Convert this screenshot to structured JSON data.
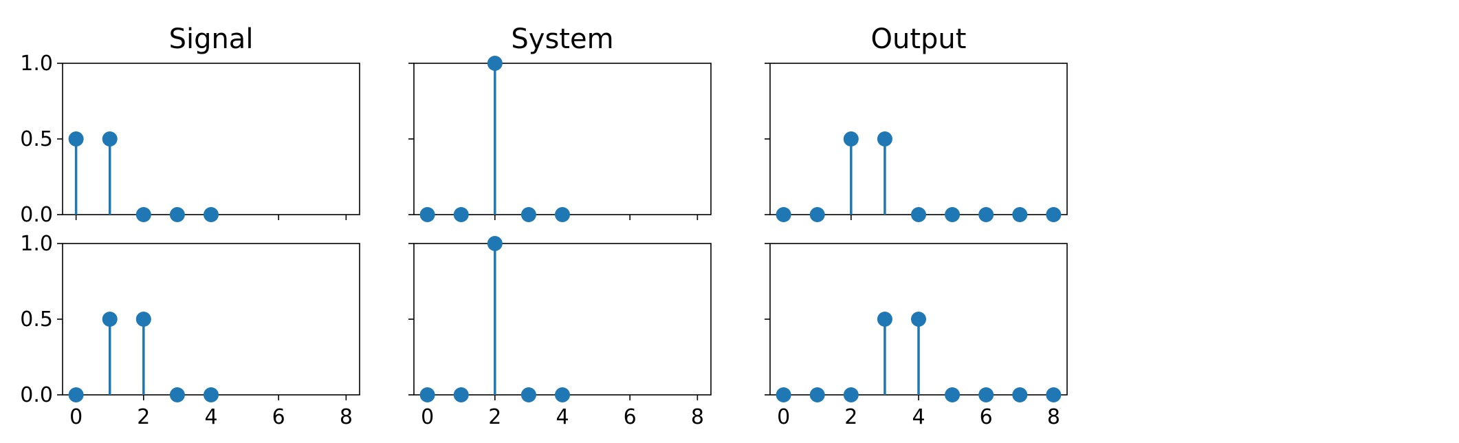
{
  "chart_data": [
    {
      "type": "stem",
      "title": "Signal",
      "x": [
        0,
        1,
        2,
        3,
        4
      ],
      "y": [
        0.5,
        0.5,
        0,
        0,
        0
      ],
      "xlim": [
        -0.4,
        8.4
      ],
      "ylim": [
        0,
        1
      ],
      "xticks": [
        0,
        2,
        4,
        6,
        8
      ],
      "yticks": [
        "0.0",
        "0.5",
        "1.0"
      ],
      "show_title": true,
      "show_yticklabels": true,
      "show_xticklabels": false
    },
    {
      "type": "stem",
      "title": "System",
      "x": [
        0,
        1,
        2,
        3,
        4
      ],
      "y": [
        0,
        0,
        1,
        0,
        0
      ],
      "xlim": [
        -0.4,
        8.4
      ],
      "ylim": [
        0,
        1
      ],
      "xticks": [
        0,
        2,
        4,
        6,
        8
      ],
      "yticks": [
        "0.0",
        "0.5",
        "1.0"
      ],
      "show_title": true,
      "show_yticklabels": false,
      "show_xticklabels": false
    },
    {
      "type": "stem",
      "title": "Output",
      "x": [
        0,
        1,
        2,
        3,
        4,
        5,
        6,
        7,
        8
      ],
      "y": [
        0,
        0,
        0.5,
        0.5,
        0,
        0,
        0,
        0,
        0
      ],
      "xlim": [
        -0.4,
        8.4
      ],
      "ylim": [
        0,
        1
      ],
      "xticks": [
        0,
        2,
        4,
        6,
        8
      ],
      "yticks": [
        "0.0",
        "0.5",
        "1.0"
      ],
      "show_title": true,
      "show_yticklabels": false,
      "show_xticklabels": false
    },
    {
      "type": "stem",
      "title": "",
      "x": [
        0,
        1,
        2,
        3,
        4
      ],
      "y": [
        0,
        0.5,
        0.5,
        0,
        0
      ],
      "xlim": [
        -0.4,
        8.4
      ],
      "ylim": [
        0,
        1
      ],
      "xticks": [
        0,
        2,
        4,
        6,
        8
      ],
      "yticks": [
        "0.0",
        "0.5",
        "1.0"
      ],
      "show_title": false,
      "show_yticklabels": true,
      "show_xticklabels": true
    },
    {
      "type": "stem",
      "title": "",
      "x": [
        0,
        1,
        2,
        3,
        4
      ],
      "y": [
        0,
        0,
        1,
        0,
        0
      ],
      "xlim": [
        -0.4,
        8.4
      ],
      "ylim": [
        0,
        1
      ],
      "xticks": [
        0,
        2,
        4,
        6,
        8
      ],
      "yticks": [
        "0.0",
        "0.5",
        "1.0"
      ],
      "show_title": false,
      "show_yticklabels": false,
      "show_xticklabels": true
    },
    {
      "type": "stem",
      "title": "",
      "x": [
        0,
        1,
        2,
        3,
        4,
        5,
        6,
        7,
        8
      ],
      "y": [
        0,
        0,
        0,
        0.5,
        0.5,
        0,
        0,
        0,
        0
      ],
      "xlim": [
        -0.4,
        8.4
      ],
      "ylim": [
        0,
        1
      ],
      "xticks": [
        0,
        2,
        4,
        6,
        8
      ],
      "yticks": [
        "0.0",
        "0.5",
        "1.0"
      ],
      "show_title": false,
      "show_yticklabels": false,
      "show_xticklabels": true
    }
  ],
  "colors": {
    "stem": "#1f77b4",
    "axes": "#000000",
    "background": "#ffffff"
  }
}
